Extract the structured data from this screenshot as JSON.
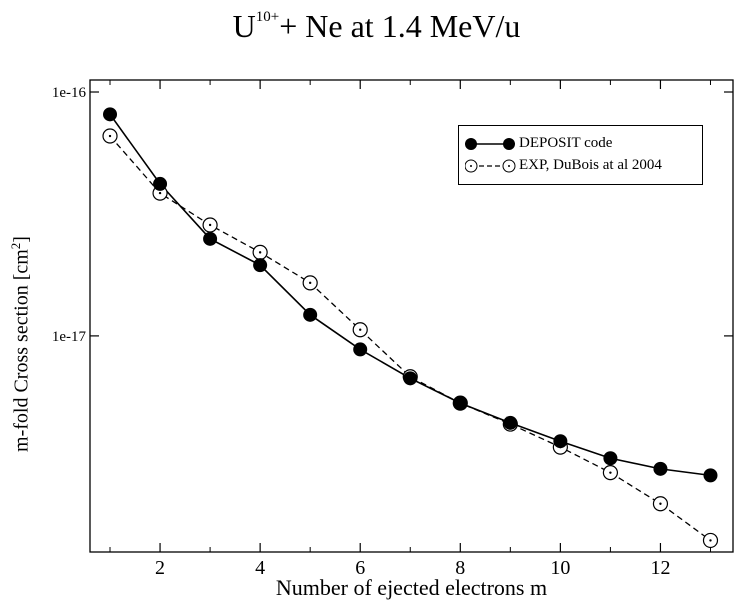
{
  "chart_data": {
    "type": "line",
    "title": {
      "main_left": "U",
      "superscript": "10+",
      "main_right": "+   Ne  at  1.4 MeV/u"
    },
    "xlabel": "Number of ejected electrons m",
    "ylabel": "m-fold Cross section  [cm",
    "ylabel_sup": "2",
    "ylabel_end": "]",
    "xlim": [
      0.6,
      13.45
    ],
    "ylim": [
      1.3e-18,
      1.12e-16
    ],
    "yscale": "log",
    "x_ticks": [
      2,
      4,
      6,
      8,
      10,
      12
    ],
    "x_tick_labels": [
      "2",
      "4",
      "6",
      "8",
      "10",
      "12"
    ],
    "y_ticks": [
      1e-17,
      1e-16
    ],
    "y_tick_labels": [
      "1e-17",
      "1e-16"
    ],
    "x": [
      1,
      2,
      3,
      4,
      5,
      6,
      7,
      8,
      9,
      10,
      11,
      12,
      13
    ],
    "series": [
      {
        "name": "DEPOSIT code",
        "style": "solid",
        "marker": "filled-circle",
        "values": [
          8.1e-17,
          4.2e-17,
          2.5e-17,
          1.95e-17,
          1.22e-17,
          8.8e-18,
          6.7e-18,
          5.3e-18,
          4.4e-18,
          3.7e-18,
          3.15e-18,
          2.85e-18,
          2.68e-18
        ]
      },
      {
        "name": "EXP, DuBois at al 2004",
        "style": "dashed",
        "marker": "open-circle",
        "values": [
          6.6e-17,
          3.85e-17,
          2.85e-17,
          2.2e-17,
          1.65e-17,
          1.06e-17,
          6.8e-18,
          5.3e-18,
          4.35e-18,
          3.5e-18,
          2.75e-18,
          2.05e-18,
          1.45e-18
        ]
      }
    ],
    "legend_position": "top-right",
    "grid": false,
    "colors": {
      "line": "#000000",
      "background": "#ffffff"
    }
  }
}
